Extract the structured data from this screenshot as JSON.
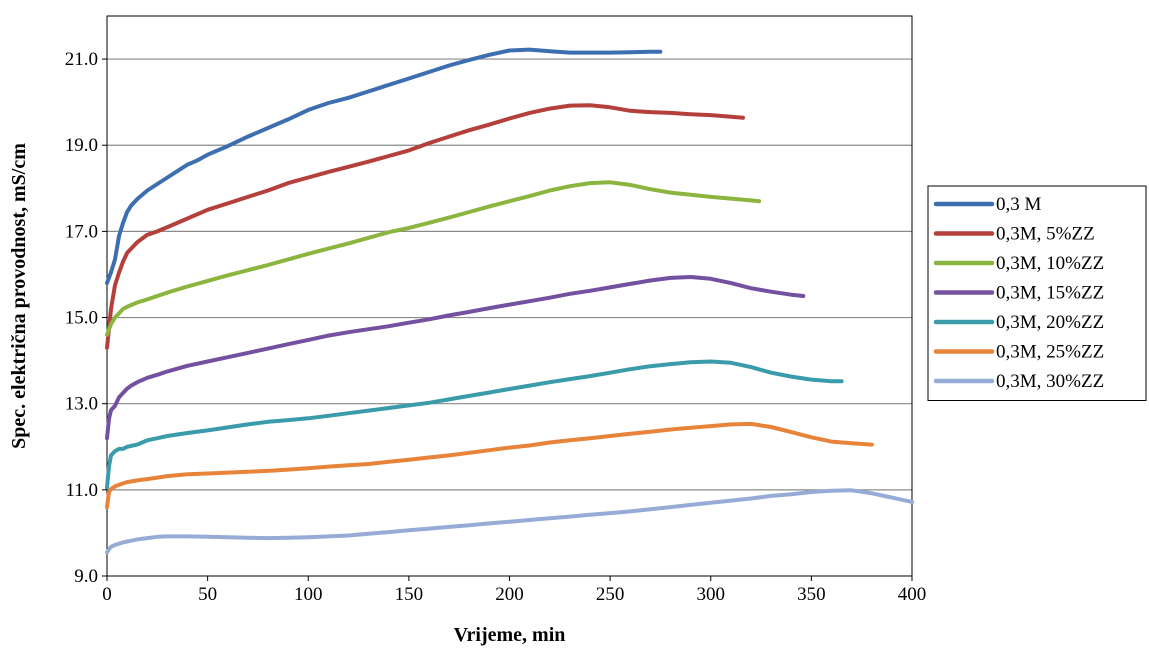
{
  "chart_data": {
    "type": "line",
    "title": "",
    "xlabel": "Vrijeme, min",
    "ylabel": "Spec. električna provodnost, mS/cm",
    "xlim": [
      0,
      400
    ],
    "ylim": [
      9.0,
      22.0
    ],
    "x_ticks": [
      "0",
      "50",
      "100",
      "150",
      "200",
      "250",
      "300",
      "350",
      "400"
    ],
    "y_ticks": [
      "9.0",
      "11.0",
      "13.0",
      "15.0",
      "17.0",
      "19.0",
      "21.0"
    ],
    "y_tick_values": [
      9.0,
      11.0,
      13.0,
      15.0,
      17.0,
      19.0,
      21.0
    ],
    "x_tick_values": [
      0,
      50,
      100,
      150,
      200,
      250,
      300,
      350,
      400
    ],
    "grid": "horizontal",
    "legend_position": "right",
    "series": [
      {
        "name": "0,3 M",
        "color": "#3d6fb0",
        "points": [
          [
            0,
            15.8
          ],
          [
            2,
            16.05
          ],
          [
            4,
            16.35
          ],
          [
            6,
            16.9
          ],
          [
            8,
            17.2
          ],
          [
            10,
            17.45
          ],
          [
            12,
            17.6
          ],
          [
            15,
            17.75
          ],
          [
            20,
            17.95
          ],
          [
            25,
            18.1
          ],
          [
            30,
            18.25
          ],
          [
            35,
            18.4
          ],
          [
            40,
            18.55
          ],
          [
            45,
            18.65
          ],
          [
            50,
            18.78
          ],
          [
            60,
            18.98
          ],
          [
            70,
            19.2
          ],
          [
            80,
            19.4
          ],
          [
            90,
            19.6
          ],
          [
            100,
            19.82
          ],
          [
            110,
            19.98
          ],
          [
            120,
            20.1
          ],
          [
            130,
            20.25
          ],
          [
            140,
            20.4
          ],
          [
            150,
            20.55
          ],
          [
            160,
            20.7
          ],
          [
            170,
            20.85
          ],
          [
            180,
            20.98
          ],
          [
            190,
            21.1
          ],
          [
            200,
            21.2
          ],
          [
            210,
            21.22
          ],
          [
            220,
            21.18
          ],
          [
            230,
            21.15
          ],
          [
            240,
            21.15
          ],
          [
            250,
            21.15
          ],
          [
            260,
            21.16
          ],
          [
            270,
            21.17
          ],
          [
            275,
            21.17
          ]
        ]
      },
      {
        "name": "0,3M, 5%ZZ",
        "color": "#b43f3b",
        "points": [
          [
            0,
            14.3
          ],
          [
            2,
            15.2
          ],
          [
            4,
            15.75
          ],
          [
            6,
            16.05
          ],
          [
            8,
            16.3
          ],
          [
            10,
            16.5
          ],
          [
            12,
            16.6
          ],
          [
            15,
            16.75
          ],
          [
            20,
            16.92
          ],
          [
            25,
            17.0
          ],
          [
            30,
            17.1
          ],
          [
            40,
            17.3
          ],
          [
            50,
            17.5
          ],
          [
            60,
            17.65
          ],
          [
            70,
            17.8
          ],
          [
            80,
            17.95
          ],
          [
            90,
            18.12
          ],
          [
            100,
            18.25
          ],
          [
            110,
            18.38
          ],
          [
            120,
            18.5
          ],
          [
            130,
            18.62
          ],
          [
            140,
            18.75
          ],
          [
            150,
            18.88
          ],
          [
            160,
            19.05
          ],
          [
            170,
            19.2
          ],
          [
            180,
            19.35
          ],
          [
            190,
            19.48
          ],
          [
            200,
            19.62
          ],
          [
            210,
            19.75
          ],
          [
            220,
            19.85
          ],
          [
            230,
            19.92
          ],
          [
            240,
            19.93
          ],
          [
            250,
            19.88
          ],
          [
            260,
            19.8
          ],
          [
            270,
            19.77
          ],
          [
            280,
            19.75
          ],
          [
            290,
            19.72
          ],
          [
            300,
            19.7
          ],
          [
            310,
            19.66
          ],
          [
            316,
            19.64
          ]
        ]
      },
      {
        "name": "0,3M, 10%ZZ",
        "color": "#8bb53f",
        "points": [
          [
            0,
            14.6
          ],
          [
            2,
            14.85
          ],
          [
            4,
            15.0
          ],
          [
            6,
            15.1
          ],
          [
            8,
            15.2
          ],
          [
            10,
            15.25
          ],
          [
            15,
            15.35
          ],
          [
            20,
            15.42
          ],
          [
            25,
            15.5
          ],
          [
            30,
            15.58
          ],
          [
            40,
            15.72
          ],
          [
            50,
            15.85
          ],
          [
            60,
            15.98
          ],
          [
            70,
            16.1
          ],
          [
            80,
            16.22
          ],
          [
            90,
            16.35
          ],
          [
            100,
            16.48
          ],
          [
            110,
            16.6
          ],
          [
            120,
            16.72
          ],
          [
            130,
            16.85
          ],
          [
            140,
            16.98
          ],
          [
            150,
            17.08
          ],
          [
            160,
            17.2
          ],
          [
            170,
            17.32
          ],
          [
            180,
            17.45
          ],
          [
            190,
            17.58
          ],
          [
            200,
            17.7
          ],
          [
            210,
            17.82
          ],
          [
            220,
            17.95
          ],
          [
            230,
            18.05
          ],
          [
            240,
            18.12
          ],
          [
            250,
            18.14
          ],
          [
            260,
            18.08
          ],
          [
            270,
            17.98
          ],
          [
            280,
            17.9
          ],
          [
            290,
            17.85
          ],
          [
            300,
            17.8
          ],
          [
            310,
            17.76
          ],
          [
            320,
            17.72
          ],
          [
            324,
            17.7
          ]
        ]
      },
      {
        "name": "0,3M, 15%ZZ",
        "color": "#7451a0",
        "points": [
          [
            0,
            12.2
          ],
          [
            1,
            12.65
          ],
          [
            2,
            12.85
          ],
          [
            4,
            12.95
          ],
          [
            6,
            13.15
          ],
          [
            8,
            13.25
          ],
          [
            10,
            13.35
          ],
          [
            12,
            13.42
          ],
          [
            15,
            13.5
          ],
          [
            20,
            13.6
          ],
          [
            25,
            13.67
          ],
          [
            30,
            13.75
          ],
          [
            40,
            13.88
          ],
          [
            50,
            13.98
          ],
          [
            60,
            14.08
          ],
          [
            70,
            14.18
          ],
          [
            80,
            14.28
          ],
          [
            90,
            14.38
          ],
          [
            100,
            14.48
          ],
          [
            110,
            14.58
          ],
          [
            120,
            14.66
          ],
          [
            130,
            14.73
          ],
          [
            140,
            14.8
          ],
          [
            150,
            14.88
          ],
          [
            160,
            14.96
          ],
          [
            170,
            15.05
          ],
          [
            180,
            15.13
          ],
          [
            190,
            15.22
          ],
          [
            200,
            15.3
          ],
          [
            210,
            15.38
          ],
          [
            220,
            15.46
          ],
          [
            230,
            15.55
          ],
          [
            240,
            15.62
          ],
          [
            250,
            15.7
          ],
          [
            260,
            15.78
          ],
          [
            270,
            15.86
          ],
          [
            280,
            15.92
          ],
          [
            290,
            15.94
          ],
          [
            300,
            15.9
          ],
          [
            310,
            15.8
          ],
          [
            320,
            15.68
          ],
          [
            330,
            15.6
          ],
          [
            340,
            15.53
          ],
          [
            346,
            15.5
          ]
        ]
      },
      {
        "name": "0,3M, 20%ZZ",
        "color": "#3a9bab",
        "points": [
          [
            0,
            11.05
          ],
          [
            1,
            11.55
          ],
          [
            2,
            11.8
          ],
          [
            4,
            11.9
          ],
          [
            6,
            11.95
          ],
          [
            8,
            11.95
          ],
          [
            10,
            12.0
          ],
          [
            15,
            12.05
          ],
          [
            20,
            12.15
          ],
          [
            25,
            12.2
          ],
          [
            30,
            12.25
          ],
          [
            40,
            12.32
          ],
          [
            50,
            12.38
          ],
          [
            60,
            12.45
          ],
          [
            70,
            12.52
          ],
          [
            80,
            12.58
          ],
          [
            90,
            12.62
          ],
          [
            100,
            12.66
          ],
          [
            110,
            12.72
          ],
          [
            120,
            12.78
          ],
          [
            130,
            12.84
          ],
          [
            140,
            12.9
          ],
          [
            150,
            12.96
          ],
          [
            160,
            13.02
          ],
          [
            170,
            13.1
          ],
          [
            180,
            13.18
          ],
          [
            190,
            13.26
          ],
          [
            200,
            13.34
          ],
          [
            210,
            13.42
          ],
          [
            220,
            13.5
          ],
          [
            230,
            13.57
          ],
          [
            240,
            13.64
          ],
          [
            250,
            13.72
          ],
          [
            260,
            13.8
          ],
          [
            270,
            13.87
          ],
          [
            280,
            13.92
          ],
          [
            290,
            13.96
          ],
          [
            300,
            13.98
          ],
          [
            310,
            13.95
          ],
          [
            320,
            13.85
          ],
          [
            330,
            13.72
          ],
          [
            340,
            13.63
          ],
          [
            350,
            13.56
          ],
          [
            360,
            13.52
          ],
          [
            365,
            13.52
          ]
        ]
      },
      {
        "name": "0,3M, 25%ZZ",
        "color": "#e8833a",
        "points": [
          [
            0,
            10.6
          ],
          [
            1,
            10.95
          ],
          [
            2,
            11.02
          ],
          [
            4,
            11.08
          ],
          [
            6,
            11.12
          ],
          [
            8,
            11.15
          ],
          [
            10,
            11.18
          ],
          [
            15,
            11.22
          ],
          [
            20,
            11.25
          ],
          [
            30,
            11.32
          ],
          [
            40,
            11.36
          ],
          [
            50,
            11.38
          ],
          [
            60,
            11.4
          ],
          [
            70,
            11.42
          ],
          [
            80,
            11.44
          ],
          [
            90,
            11.47
          ],
          [
            100,
            11.5
          ],
          [
            110,
            11.54
          ],
          [
            120,
            11.57
          ],
          [
            130,
            11.6
          ],
          [
            140,
            11.65
          ],
          [
            150,
            11.7
          ],
          [
            160,
            11.75
          ],
          [
            170,
            11.8
          ],
          [
            180,
            11.86
          ],
          [
            190,
            11.92
          ],
          [
            200,
            11.98
          ],
          [
            210,
            12.03
          ],
          [
            220,
            12.1
          ],
          [
            230,
            12.15
          ],
          [
            240,
            12.2
          ],
          [
            250,
            12.25
          ],
          [
            260,
            12.3
          ],
          [
            270,
            12.35
          ],
          [
            280,
            12.4
          ],
          [
            290,
            12.44
          ],
          [
            300,
            12.48
          ],
          [
            310,
            12.52
          ],
          [
            320,
            12.53
          ],
          [
            330,
            12.46
          ],
          [
            340,
            12.34
          ],
          [
            350,
            12.22
          ],
          [
            360,
            12.12
          ],
          [
            370,
            12.08
          ],
          [
            380,
            12.05
          ]
        ]
      },
      {
        "name": "0,3M, 30%ZZ",
        "color": "#96acd6",
        "points": [
          [
            0,
            9.55
          ],
          [
            1,
            9.62
          ],
          [
            2,
            9.68
          ],
          [
            4,
            9.72
          ],
          [
            6,
            9.75
          ],
          [
            8,
            9.78
          ],
          [
            10,
            9.8
          ],
          [
            15,
            9.85
          ],
          [
            20,
            9.88
          ],
          [
            25,
            9.91
          ],
          [
            30,
            9.92
          ],
          [
            40,
            9.92
          ],
          [
            50,
            9.91
          ],
          [
            60,
            9.9
          ],
          [
            70,
            9.89
          ],
          [
            80,
            9.88
          ],
          [
            90,
            9.89
          ],
          [
            100,
            9.9
          ],
          [
            110,
            9.92
          ],
          [
            120,
            9.94
          ],
          [
            130,
            9.98
          ],
          [
            140,
            10.02
          ],
          [
            150,
            10.06
          ],
          [
            160,
            10.1
          ],
          [
            170,
            10.14
          ],
          [
            180,
            10.18
          ],
          [
            190,
            10.22
          ],
          [
            200,
            10.26
          ],
          [
            210,
            10.3
          ],
          [
            220,
            10.34
          ],
          [
            230,
            10.38
          ],
          [
            240,
            10.42
          ],
          [
            250,
            10.46
          ],
          [
            260,
            10.5
          ],
          [
            270,
            10.55
          ],
          [
            280,
            10.6
          ],
          [
            290,
            10.65
          ],
          [
            300,
            10.7
          ],
          [
            310,
            10.75
          ],
          [
            320,
            10.8
          ],
          [
            330,
            10.86
          ],
          [
            340,
            10.9
          ],
          [
            350,
            10.95
          ],
          [
            360,
            10.98
          ],
          [
            370,
            10.99
          ],
          [
            380,
            10.92
          ],
          [
            390,
            10.82
          ],
          [
            400,
            10.72
          ]
        ]
      }
    ]
  }
}
